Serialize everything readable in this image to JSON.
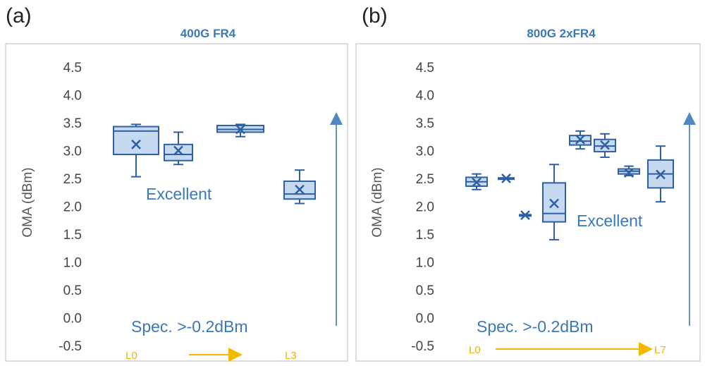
{
  "colors": {
    "box_stroke": "#2e5fa3",
    "box_fill": "#c5d9f0",
    "annotation": "#3a78b8",
    "lane_arrow": "#f5b800",
    "panel_border": "#d0d0d0"
  },
  "chart_data": [
    {
      "type": "box",
      "panel_label": "(a)",
      "title": "400G FR4",
      "ylabel": "OMA (dBm)",
      "ylim": [
        -0.5,
        4.5
      ],
      "yticks": [
        "4.5",
        "4.0",
        "3.5",
        "3.0",
        "2.5",
        "2.0",
        "1.5",
        "1.0",
        "0.5",
        "0.0",
        "-0.5"
      ],
      "grid": false,
      "annotations": {
        "excellent": "Excellent",
        "spec": "Spec. >-0.2dBm",
        "lane_start": "L0",
        "lane_end": "L3"
      },
      "boxes": [
        {
          "min": 2.53,
          "q1": 2.93,
          "median": 3.35,
          "q3": 3.43,
          "max": 3.47,
          "mean": 3.11
        },
        {
          "min": 2.75,
          "q1": 2.82,
          "median": 2.93,
          "q3": 3.11,
          "max": 3.33,
          "mean": 3.0
        },
        {
          "min": 3.25,
          "q1": 3.33,
          "median": 3.38,
          "q3": 3.45,
          "max": 3.47,
          "mean": 3.38
        },
        {
          "min": 2.05,
          "q1": 2.13,
          "median": 2.22,
          "q3": 2.45,
          "max": 2.65,
          "mean": 2.3
        }
      ]
    },
    {
      "type": "box",
      "panel_label": "(b)",
      "title": "800G 2xFR4",
      "ylabel": "OMA (dBm)",
      "ylim": [
        -0.5,
        4.5
      ],
      "yticks": [
        "4.5",
        "4.0",
        "3.5",
        "3.0",
        "2.5",
        "2.0",
        "1.5",
        "1.0",
        "0.5",
        "0.0",
        "-0.5"
      ],
      "grid": false,
      "annotations": {
        "excellent": "Excellent",
        "spec": "Spec. >-0.2dBm",
        "lane_start": "L0",
        "lane_end": "L7"
      },
      "boxes": [
        {
          "min": 2.3,
          "q1": 2.36,
          "median": 2.44,
          "q3": 2.52,
          "max": 2.58,
          "mean": 2.43
        },
        {
          "min": 2.5,
          "q1": 2.5,
          "median": 2.5,
          "q3": 2.51,
          "max": 2.51,
          "mean": 2.5
        },
        {
          "min": 1.83,
          "q1": 1.83,
          "median": 1.84,
          "q3": 1.85,
          "max": 1.86,
          "mean": 1.84
        },
        {
          "min": 1.4,
          "q1": 1.72,
          "median": 1.87,
          "q3": 2.42,
          "max": 2.75,
          "mean": 2.05
        },
        {
          "min": 3.03,
          "q1": 3.1,
          "median": 3.17,
          "q3": 3.27,
          "max": 3.35,
          "mean": 3.2
        },
        {
          "min": 2.88,
          "q1": 2.98,
          "median": 3.08,
          "q3": 3.2,
          "max": 3.3,
          "mean": 3.1
        },
        {
          "min": 2.55,
          "q1": 2.58,
          "median": 2.63,
          "q3": 2.67,
          "max": 2.72,
          "mean": 2.6
        },
        {
          "min": 2.08,
          "q1": 2.33,
          "median": 2.58,
          "q3": 2.83,
          "max": 3.08,
          "mean": 2.57
        }
      ]
    }
  ]
}
